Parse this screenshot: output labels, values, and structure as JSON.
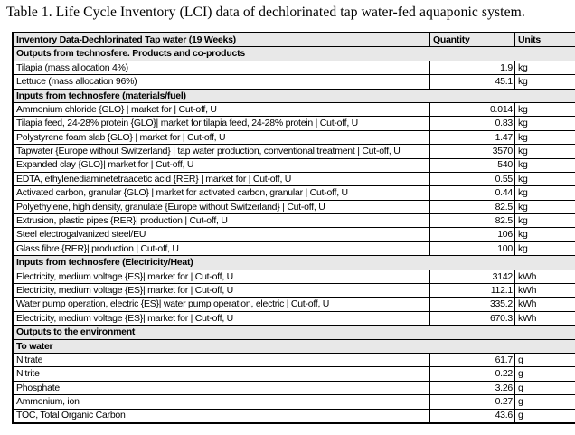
{
  "page": {
    "title": "Table 1. Life Cycle Inventory (LCI) data of dechlorinated tap water-fed aquaponic system."
  },
  "colors": {
    "section_bg": "#e8e8e8",
    "border": "#000000",
    "page_bg": "#ffffff",
    "text": "#000000"
  },
  "table": {
    "columns": [
      "Inventory Data-Dechlorinated Tap water (19 Weeks)",
      "Quantity",
      "Units"
    ],
    "rows": [
      {
        "type": "section",
        "label": "Outputs from technosfere. Products and co-products"
      },
      {
        "type": "data",
        "label": "Tilapia (mass allocation 4%)",
        "quantity": "1.9",
        "unit": "kg"
      },
      {
        "type": "data",
        "label": "Lettuce (mass allocation 96%)",
        "quantity": "45.1",
        "unit": "kg"
      },
      {
        "type": "section",
        "label": "Inputs from technosfere (materials/fuel)"
      },
      {
        "type": "data",
        "label": "Ammonium chloride {GLO} | market for | Cut-off, U",
        "quantity": "0.014",
        "unit": "kg"
      },
      {
        "type": "data",
        "label": "Tilapia feed, 24-28% protein {GLO}| market for tilapia feed, 24-28% protein | Cut-off, U",
        "quantity": "0.83",
        "unit": "kg"
      },
      {
        "type": "data",
        "label": "Polystyrene foam slab {GLO} | market for | Cut-off, U",
        "quantity": "1.47",
        "unit": "kg"
      },
      {
        "type": "data",
        "label": "Tapwater {Europe without Switzerland} | tap water production, conventional treatment | Cut-off, U",
        "quantity": "3570",
        "unit": "kg"
      },
      {
        "type": "data",
        "label": "Expanded clay {GLO}| market for | Cut-off, U",
        "quantity": "540",
        "unit": "kg"
      },
      {
        "type": "data",
        "label": "EDTA, ethylenediaminetetraacetic acid {RER} | market for | Cut-off, U",
        "quantity": "0.55",
        "unit": "kg"
      },
      {
        "type": "data",
        "label": "Activated carbon, granular {GLO} | market for activated carbon, granular | Cut-off, U",
        "quantity": "0.44",
        "unit": "kg"
      },
      {
        "type": "data",
        "label": "Polyethylene, high density, granulate {Europe without Switzerland} | Cut-off, U",
        "quantity": "82.5",
        "unit": "kg"
      },
      {
        "type": "data",
        "label": "Extrusion, plastic pipes {RER}| production | Cut-off, U",
        "quantity": "82.5",
        "unit": "kg"
      },
      {
        "type": "data",
        "label": "Steel electrogalvanized steel/EU",
        "quantity": "106",
        "unit": "kg"
      },
      {
        "type": "data",
        "label": "Glass fibre {RER}| production | Cut-off, U",
        "quantity": "100",
        "unit": "kg"
      },
      {
        "type": "section",
        "label": "Inputs from technosfere (Electricity/Heat)"
      },
      {
        "type": "data",
        "label": "Electricity, medium voltage {ES}| market for | Cut-off, U",
        "quantity": "3142",
        "unit": "kWh"
      },
      {
        "type": "data",
        "label": "Electricity, medium voltage {ES}| market for | Cut-off, U",
        "quantity": "112.1",
        "unit": "kWh"
      },
      {
        "type": "data",
        "label": "Water pump operation, electric {ES}| water pump operation, electric | Cut-off, U",
        "quantity": "335.2",
        "unit": "kWh"
      },
      {
        "type": "data",
        "label": "Electricity, medium voltage {ES}| market for | Cut-off, U",
        "quantity": "670.3",
        "unit": "kWh"
      },
      {
        "type": "section",
        "label": "Outputs to the environment"
      },
      {
        "type": "section",
        "label": "To water"
      },
      {
        "type": "data",
        "label": "Nitrate",
        "quantity": "61.7",
        "unit": "g"
      },
      {
        "type": "data",
        "label": "Nitrite",
        "quantity": "0.22",
        "unit": "g"
      },
      {
        "type": "data",
        "label": "Phosphate",
        "quantity": "3.26",
        "unit": "g"
      },
      {
        "type": "data",
        "label": "Ammonium, ion",
        "quantity": "0.27",
        "unit": "g"
      },
      {
        "type": "data",
        "label": "TOC, Total Organic Carbon",
        "quantity": "43.6",
        "unit": "g"
      }
    ]
  }
}
